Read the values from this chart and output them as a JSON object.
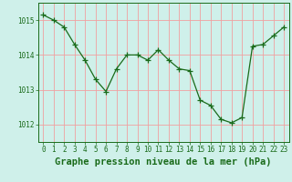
{
  "x": [
    0,
    1,
    2,
    3,
    4,
    5,
    6,
    7,
    8,
    9,
    10,
    11,
    12,
    13,
    14,
    15,
    16,
    17,
    18,
    19,
    20,
    21,
    22,
    23
  ],
  "y": [
    1015.15,
    1015.0,
    1014.8,
    1014.3,
    1013.85,
    1013.3,
    1012.95,
    1013.6,
    1014.0,
    1014.0,
    1013.85,
    1014.15,
    1013.85,
    1013.6,
    1013.55,
    1012.7,
    1012.55,
    1012.15,
    1012.05,
    1012.2,
    1014.25,
    1014.3,
    1014.55,
    1014.8
  ],
  "line_color": "#1a6b1a",
  "marker": "+",
  "marker_size": 4,
  "bg_color": "#cff0ea",
  "grid_color": "#f0a0a0",
  "label_color": "#1a6b1a",
  "xlabel": "Graphe pression niveau de la mer (hPa)",
  "xlim": [
    -0.5,
    23.5
  ],
  "ylim": [
    1011.5,
    1015.5
  ],
  "yticks": [
    1012,
    1013,
    1014,
    1015
  ],
  "xticks": [
    0,
    1,
    2,
    3,
    4,
    5,
    6,
    7,
    8,
    9,
    10,
    11,
    12,
    13,
    14,
    15,
    16,
    17,
    18,
    19,
    20,
    21,
    22,
    23
  ],
  "tick_label_fontsize": 5.5,
  "xlabel_fontsize": 7.5
}
